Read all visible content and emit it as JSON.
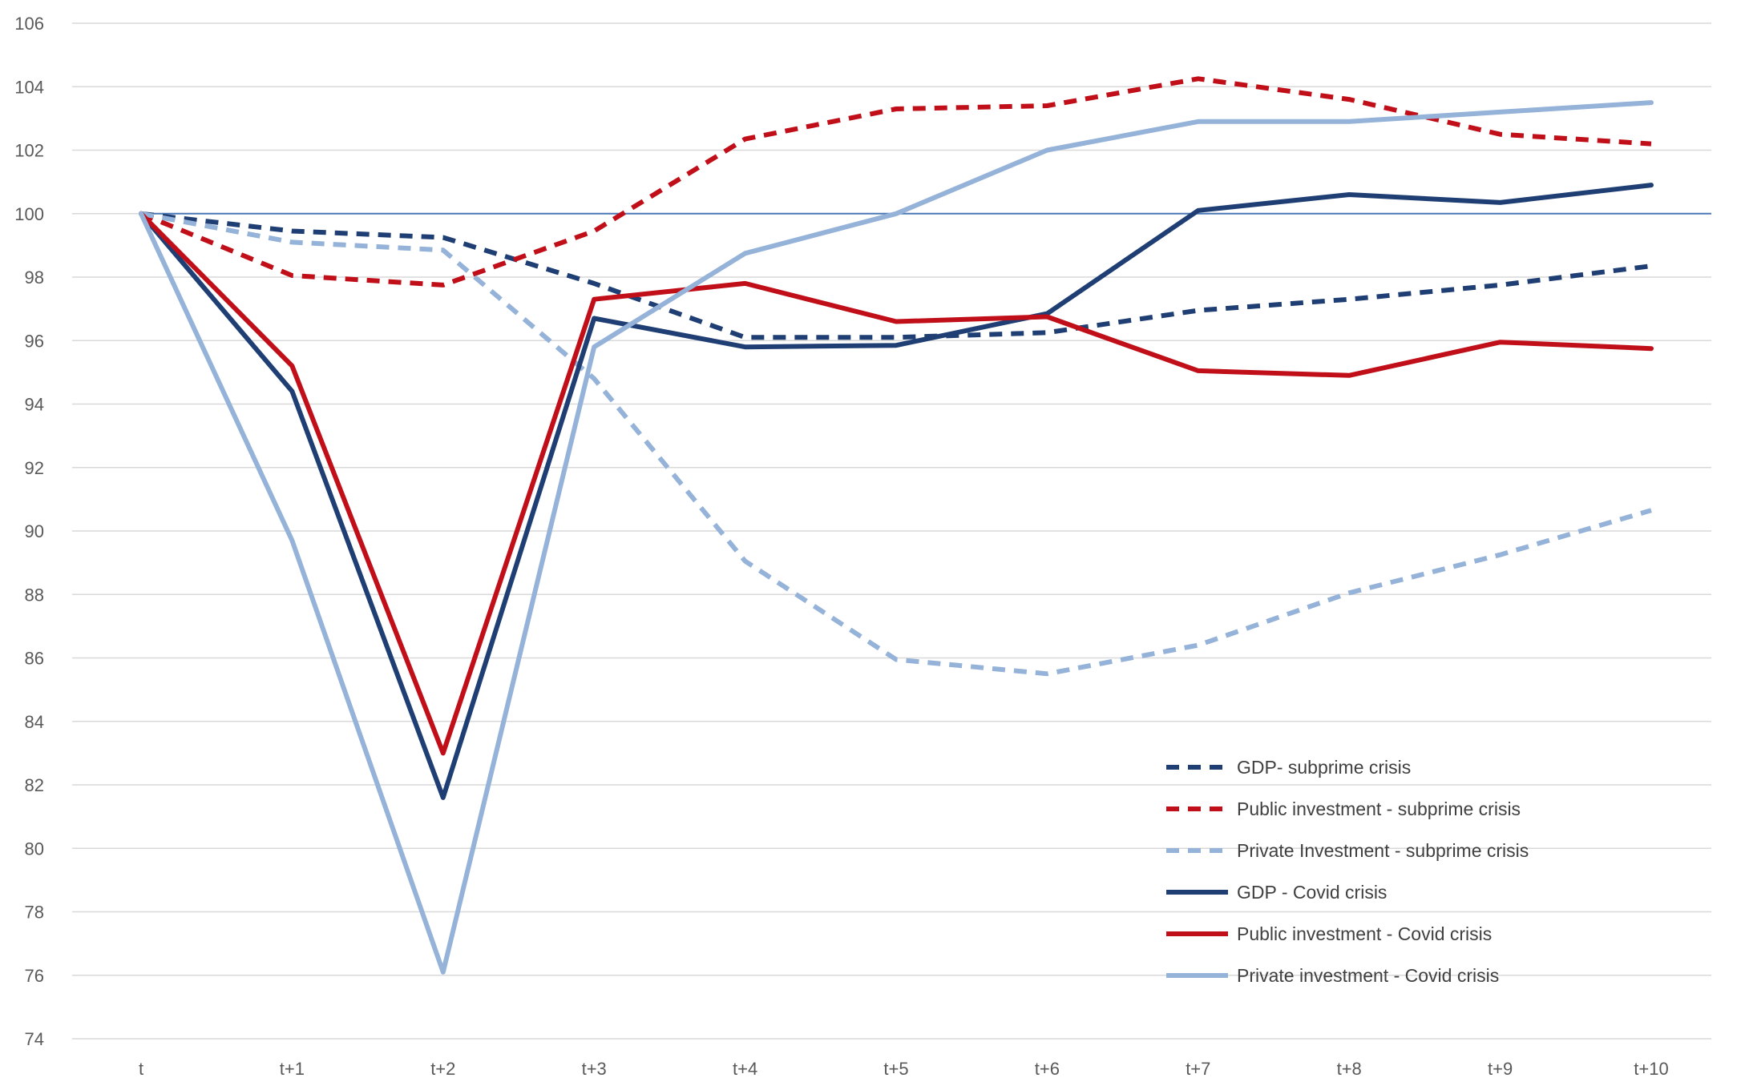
{
  "chart_data": {
    "type": "line",
    "title": "",
    "xlabel": "",
    "ylabel": "",
    "categories": [
      "t",
      "t+1",
      "t+2",
      "t+3",
      "t+4",
      "t+5",
      "t+6",
      "t+7",
      "t+8",
      "t+9",
      "t+10"
    ],
    "ylim": [
      74,
      106
    ],
    "yticks": [
      74,
      76,
      78,
      80,
      82,
      84,
      86,
      88,
      90,
      92,
      94,
      96,
      98,
      100,
      102,
      104,
      106
    ],
    "grid": true,
    "reference_line": 100,
    "legend_position": "bottom-right",
    "series": [
      {
        "name": "GDP-  subprime crisis",
        "color": "#1f3f74",
        "style": "dashed",
        "values": [
          100,
          99.45,
          99.25,
          97.8,
          96.1,
          96.1,
          96.25,
          96.95,
          97.3,
          97.75,
          98.35
        ]
      },
      {
        "name": "Public investment - subprime crisis",
        "color": "#c00f19",
        "style": "dashed",
        "values": [
          100,
          98.05,
          97.75,
          99.45,
          102.35,
          103.3,
          103.4,
          104.25,
          103.6,
          102.5,
          102.2
        ]
      },
      {
        "name": "Private Investment - subprime crisis",
        "color": "#95b2d8",
        "style": "dashed",
        "values": [
          100,
          99.1,
          98.85,
          94.8,
          89.05,
          85.95,
          85.5,
          86.4,
          88.05,
          89.25,
          90.65
        ]
      },
      {
        "name": "GDP - Covid crisis",
        "color": "#1f3f74",
        "style": "solid",
        "values": [
          100,
          94.4,
          81.6,
          96.7,
          95.8,
          95.85,
          96.85,
          100.1,
          100.6,
          100.35,
          100.9
        ]
      },
      {
        "name": "Public investment - Covid crisis",
        "color": "#c00f19",
        "style": "solid",
        "values": [
          100,
          95.2,
          83.0,
          97.3,
          97.8,
          96.6,
          96.75,
          95.05,
          94.9,
          95.95,
          95.75
        ]
      },
      {
        "name": "Private investment - Covid crisis",
        "color": "#95b2d8",
        "style": "solid",
        "values": [
          100,
          89.7,
          76.1,
          95.8,
          98.75,
          100.0,
          102.0,
          102.9,
          102.9,
          103.2,
          103.5
        ]
      }
    ]
  }
}
